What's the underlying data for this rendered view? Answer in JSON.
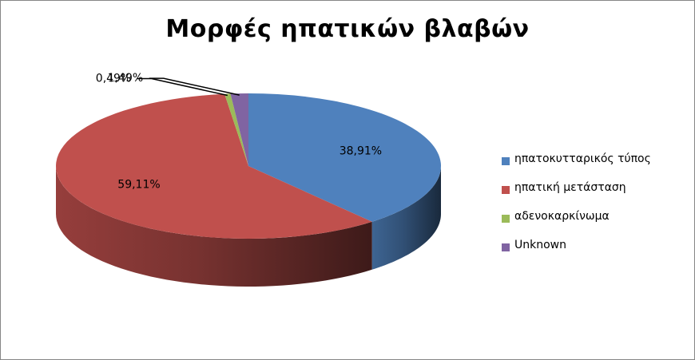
{
  "chart_data": {
    "type": "pie",
    "title": "Μορφές ηπατικών βλαβών",
    "categories": [
      "ηπατοκυτταρικός τύπος",
      "ηπατική μετάσταση",
      "αδενοκαρκίνωμα",
      "Unknown"
    ],
    "values": [
      38.91,
      59.11,
      0.49,
      1.49
    ],
    "data_labels": [
      "38,91%",
      "59,11%",
      "0,49%",
      "1,49%"
    ],
    "colors": [
      "#4F81BD",
      "#C0504D",
      "#9BBB59",
      "#8064A2"
    ],
    "legend_position": "right",
    "style": "3d"
  }
}
